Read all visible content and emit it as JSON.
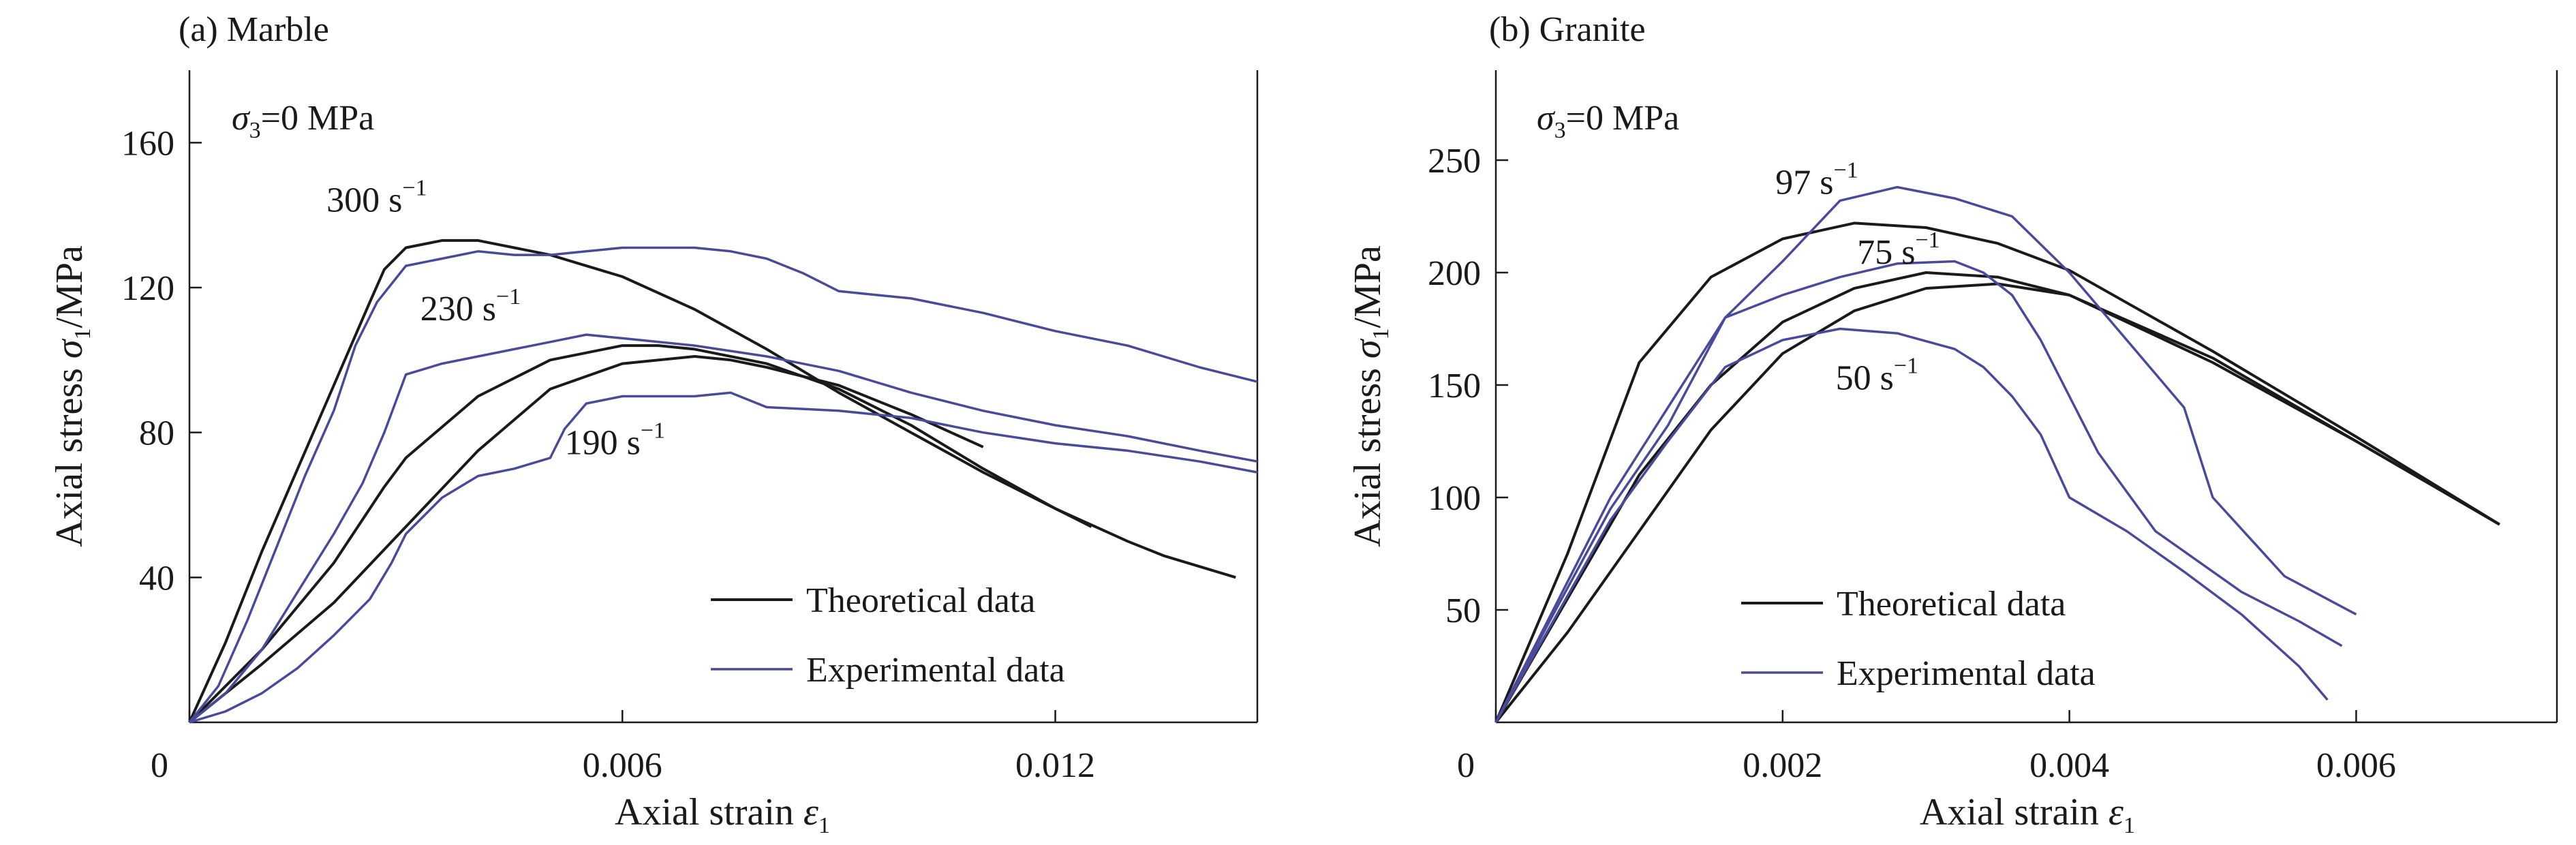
{
  "colors": {
    "theoretical": "#1a1a1a",
    "experimental": "#4a4a9c",
    "axis": "#1a1a1a"
  },
  "chart_data": [
    {
      "type": "line",
      "title": "(a) Marble",
      "condition": {
        "symbol": "σ",
        "sub": "3",
        "text": "=0 MPa"
      },
      "xlabel": {
        "text": "Axial strain ",
        "symbol": "ε",
        "sub": "1"
      },
      "ylabel": {
        "text": "Axial stress ",
        "symbol": "σ",
        "sub": "1",
        "tail": "/MPa"
      },
      "xlim": [
        0,
        0.0148
      ],
      "ylim": [
        0,
        180
      ],
      "xticks": [
        0,
        0.006,
        0.012
      ],
      "xtick_labels": [
        "0",
        "0.006",
        "0.012"
      ],
      "yticks": [
        40,
        80,
        120,
        160
      ],
      "ytick_labels": [
        "40",
        "80",
        "120",
        "160"
      ],
      "legend": {
        "position": "bottom-right",
        "entries": [
          "Theoretical data",
          "Experimental data"
        ]
      },
      "annotations": [
        {
          "text": "300 s",
          "sup": "−1",
          "x": 0.0019,
          "y": 141
        },
        {
          "text": "230 s",
          "sup": "−1",
          "x": 0.0032,
          "y": 111
        },
        {
          "text": "190 s",
          "sup": "−1",
          "x": 0.0052,
          "y": 74
        }
      ],
      "series": [
        {
          "kind": "theoretical",
          "rate": "300 s−1",
          "x": [
            0,
            0.0005,
            0.001,
            0.0015,
            0.002,
            0.0025,
            0.0027,
            0.003,
            0.0035,
            0.004,
            0.005,
            0.006,
            0.007,
            0.008,
            0.009,
            0.01,
            0.011,
            0.012,
            0.013,
            0.0135,
            0.0145
          ],
          "y": [
            0,
            22,
            47,
            70,
            93,
            116,
            125,
            131,
            133,
            133,
            129,
            123,
            114,
            103,
            91,
            80,
            69,
            59,
            50,
            46,
            40
          ]
        },
        {
          "kind": "theoretical",
          "rate": "230 s−1",
          "x": [
            0,
            0.001,
            0.002,
            0.0027,
            0.003,
            0.004,
            0.005,
            0.006,
            0.0065,
            0.007,
            0.008,
            0.009,
            0.01,
            0.011,
            0.012,
            0.0125
          ],
          "y": [
            0,
            20,
            44,
            65,
            73,
            90,
            100,
            104,
            104,
            103,
            99,
            92,
            82,
            70,
            59,
            54
          ]
        },
        {
          "kind": "theoretical",
          "rate": "190 s−1",
          "x": [
            0,
            0.001,
            0.002,
            0.003,
            0.004,
            0.005,
            0.006,
            0.007,
            0.0075,
            0.008,
            0.009,
            0.01,
            0.011
          ],
          "y": [
            0,
            16,
            33,
            54,
            75,
            92,
            99,
            101,
            100,
            98,
            93,
            85,
            76
          ]
        },
        {
          "kind": "experimental",
          "rate": "300 s−1",
          "x": [
            0,
            0.0004,
            0.0008,
            0.0012,
            0.0016,
            0.002,
            0.0023,
            0.0026,
            0.003,
            0.0035,
            0.004,
            0.0045,
            0.005,
            0.0055,
            0.006,
            0.007,
            0.0075,
            0.008,
            0.0085,
            0.009,
            0.0095,
            0.01,
            0.011,
            0.012,
            0.013,
            0.014,
            0.0148
          ],
          "y": [
            0,
            10,
            28,
            48,
            68,
            86,
            104,
            116,
            126,
            128,
            130,
            129,
            129,
            130,
            131,
            131,
            130,
            128,
            124,
            119,
            118,
            117,
            113,
            108,
            104,
            98,
            94
          ]
        },
        {
          "kind": "experimental",
          "rate": "230 s−1",
          "x": [
            0,
            0.0005,
            0.001,
            0.0015,
            0.002,
            0.0024,
            0.0027,
            0.003,
            0.0035,
            0.004,
            0.0045,
            0.005,
            0.0055,
            0.006,
            0.007,
            0.008,
            0.009,
            0.01,
            0.011,
            0.012,
            0.013,
            0.014,
            0.0148
          ],
          "y": [
            0,
            8,
            20,
            36,
            52,
            66,
            80,
            96,
            99,
            101,
            103,
            105,
            107,
            106,
            104,
            101,
            97,
            91,
            86,
            82,
            79,
            75,
            72
          ]
        },
        {
          "kind": "experimental",
          "rate": "190 s−1",
          "x": [
            0,
            0.0005,
            0.001,
            0.0015,
            0.002,
            0.0025,
            0.0028,
            0.003,
            0.0035,
            0.004,
            0.0045,
            0.005,
            0.0052,
            0.0055,
            0.006,
            0.007,
            0.0075,
            0.008,
            0.009,
            0.01,
            0.011,
            0.012,
            0.013,
            0.014,
            0.0148
          ],
          "y": [
            0,
            3,
            8,
            15,
            24,
            34,
            44,
            52,
            62,
            68,
            70,
            73,
            81,
            88,
            90,
            90,
            91,
            87,
            86,
            84,
            80,
            77,
            75,
            72,
            69
          ]
        }
      ]
    },
    {
      "type": "line",
      "title": "(b) Granite",
      "condition": {
        "symbol": "σ",
        "sub": "3",
        "text": "=0 MPa"
      },
      "xlabel": {
        "text": "Axial strain ",
        "symbol": "ε",
        "sub": "1"
      },
      "ylabel": {
        "text": "Axial stress ",
        "symbol": "σ",
        "sub": "1",
        "tail": "/MPa"
      },
      "xlim": [
        0,
        0.0074
      ],
      "ylim": [
        0,
        290
      ],
      "xticks": [
        0,
        0.002,
        0.004,
        0.006
      ],
      "xtick_labels": [
        "0",
        "0.002",
        "0.004",
        "0.006"
      ],
      "yticks": [
        50,
        100,
        150,
        200,
        250
      ],
      "ytick_labels": [
        "50",
        "100",
        "150",
        "200",
        "250"
      ],
      "legend": {
        "position": "bottom-right",
        "entries": [
          "Theoretical data",
          "Experimental data"
        ]
      },
      "annotations": [
        {
          "text": "97 s",
          "sup": "−1",
          "x": 0.00195,
          "y": 235
        },
        {
          "text": "75 s",
          "sup": "−1",
          "x": 0.00252,
          "y": 204
        },
        {
          "text": "50 s",
          "sup": "−1",
          "x": 0.00237,
          "y": 148
        }
      ],
      "series": [
        {
          "kind": "theoretical",
          "rate": "97 s−1",
          "x": [
            0,
            0.0005,
            0.001,
            0.0015,
            0.002,
            0.0025,
            0.003,
            0.0035,
            0.004,
            0.005,
            0.006,
            0.007
          ],
          "y": [
            0,
            75,
            160,
            198,
            215,
            222,
            220,
            213,
            201,
            165,
            127,
            88
          ]
        },
        {
          "kind": "theoretical",
          "rate": "75 s−1",
          "x": [
            0,
            0.0005,
            0.001,
            0.0015,
            0.002,
            0.0025,
            0.003,
            0.0035,
            0.004,
            0.005,
            0.006,
            0.007
          ],
          "y": [
            0,
            55,
            110,
            150,
            178,
            193,
            200,
            198,
            190,
            160,
            125,
            88
          ]
        },
        {
          "kind": "theoretical",
          "rate": "50 s−1",
          "x": [
            0,
            0.0005,
            0.001,
            0.0015,
            0.002,
            0.0025,
            0.003,
            0.0035,
            0.004,
            0.005,
            0.006,
            0.007
          ],
          "y": [
            0,
            40,
            85,
            130,
            164,
            183,
            193,
            195,
            190,
            162,
            125,
            88
          ]
        },
        {
          "kind": "experimental",
          "rate": "97 s−1",
          "x": [
            0,
            0.0004,
            0.0008,
            0.0012,
            0.0016,
            0.002,
            0.0024,
            0.0028,
            0.0032,
            0.0036,
            0.004,
            0.0044,
            0.0048,
            0.005,
            0.0055,
            0.006
          ],
          "y": [
            0,
            50,
            100,
            140,
            180,
            205,
            232,
            238,
            233,
            225,
            200,
            170,
            140,
            100,
            65,
            48
          ]
        },
        {
          "kind": "experimental",
          "rate": "75 s−1",
          "x": [
            0,
            0.0004,
            0.0008,
            0.0012,
            0.0016,
            0.002,
            0.0024,
            0.0028,
            0.0032,
            0.0034,
            0.0036,
            0.0038,
            0.004,
            0.0042,
            0.0046,
            0.0052,
            0.0056,
            0.0059
          ],
          "y": [
            0,
            48,
            95,
            132,
            180,
            190,
            198,
            204,
            205,
            200,
            190,
            170,
            145,
            120,
            85,
            58,
            45,
            34
          ]
        },
        {
          "kind": "experimental",
          "rate": "50 s−1",
          "x": [
            0,
            0.0004,
            0.0008,
            0.0012,
            0.0016,
            0.002,
            0.0024,
            0.0028,
            0.0032,
            0.0034,
            0.0036,
            0.0038,
            0.004,
            0.0044,
            0.0048,
            0.0052,
            0.0056,
            0.0058
          ],
          "y": [
            0,
            45,
            90,
            125,
            158,
            170,
            175,
            173,
            166,
            158,
            145,
            128,
            100,
            85,
            67,
            48,
            25,
            10
          ]
        }
      ]
    }
  ]
}
